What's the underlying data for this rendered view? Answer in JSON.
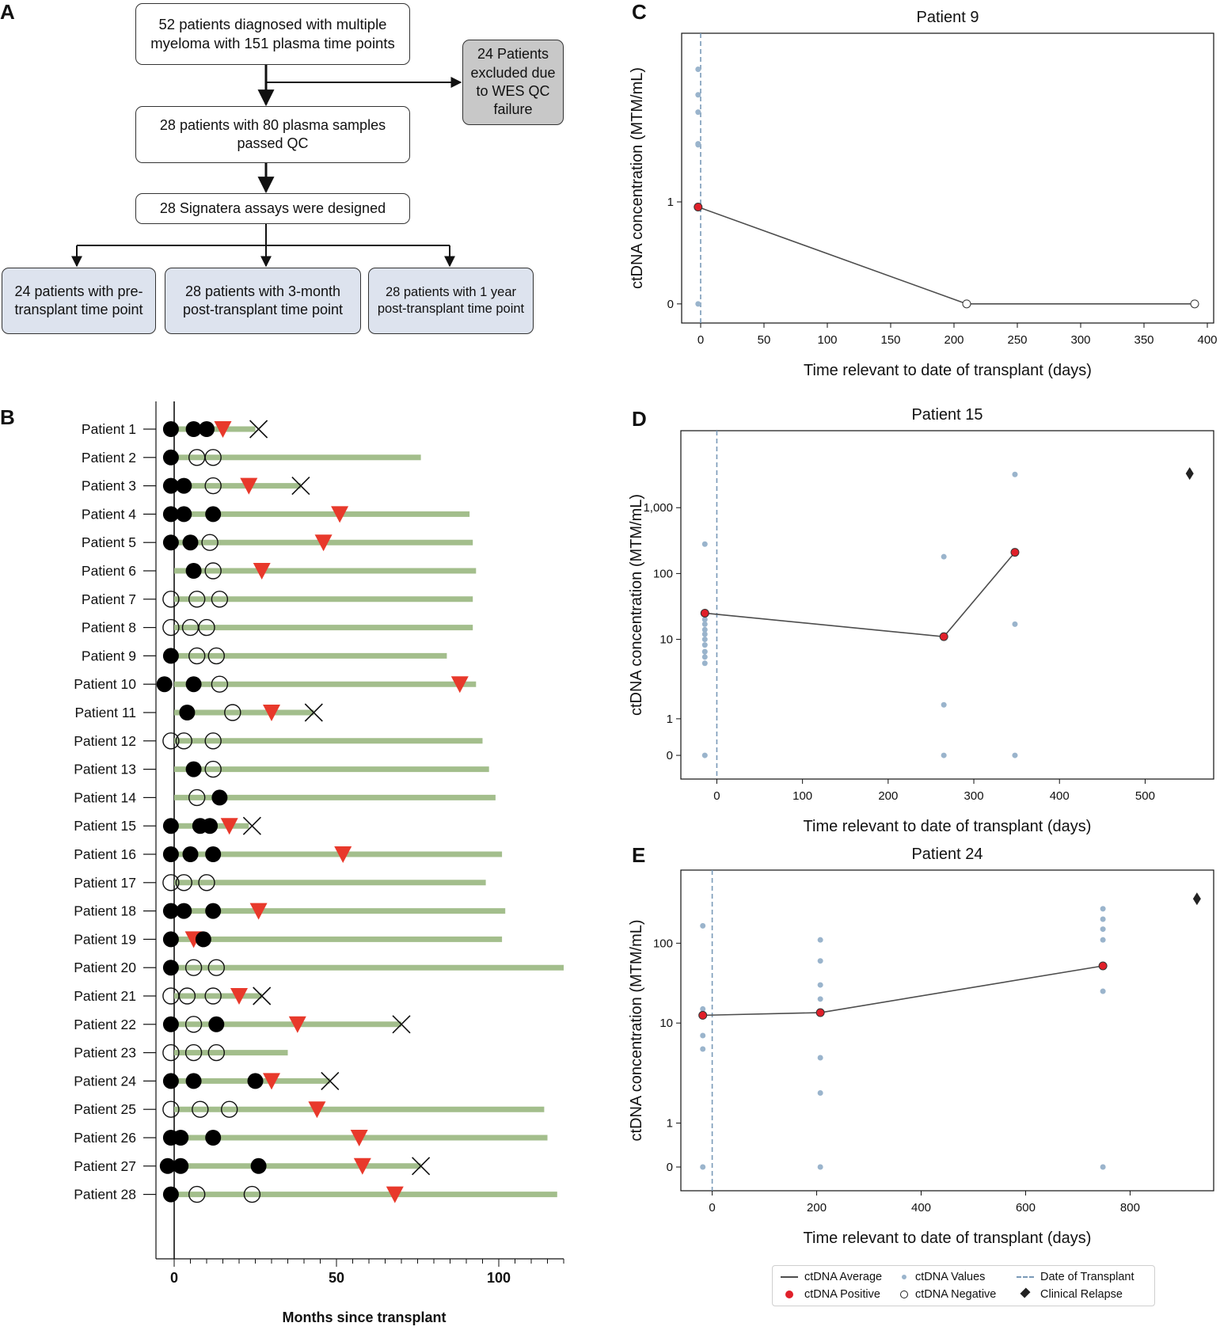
{
  "panel_letters": {
    "a": "A",
    "b": "B",
    "c": "C",
    "d": "D",
    "e": "E"
  },
  "flowchart": {
    "box1": "52 patients diagnosed with multiple myeloma with 151 plasma time points",
    "excluded": "24 Patients excluded due to WES QC failure",
    "box2": "28 patients with 80 plasma samples passed QC",
    "box3": "28 Signatera assays were designed",
    "out1": "24 patients with pre-transplant time point",
    "out2": "28 patients with 3-month post-transplant time point",
    "out3": "28 patients with 1 year post-transplant time point"
  },
  "legend": {
    "avg": "ctDNA Average",
    "positive": "ctDNA Positive",
    "values": "ctDNA Values",
    "negative": "ctDNA Negative",
    "transplant": "Date of Transplant",
    "relapse": "Clinical Relapse"
  },
  "colors": {
    "green_bar": "#a3be8c",
    "relapse_triangle": "#e8392b",
    "positive_dot": "#e0202a",
    "value_dot": "#9ab4cc",
    "line": "#4d4d4d",
    "transplant_line": "#7a9ab8"
  },
  "chart_data": [
    {
      "id": "B",
      "type": "swimmer",
      "xlabel": "Months since transplant",
      "xticks": [
        0,
        50,
        100
      ],
      "xlim": [
        -5,
        120
      ],
      "patients": [
        {
          "label": "Patient 1",
          "end": 25,
          "pos": [
            -1,
            6,
            10
          ],
          "neg": [],
          "relapse": [
            15
          ],
          "death": 26
        },
        {
          "label": "Patient 2",
          "end": 76,
          "pos": [
            -1
          ],
          "neg": [
            7,
            12
          ],
          "relapse": [],
          "death": null
        },
        {
          "label": "Patient 3",
          "end": 39,
          "pos": [
            -1,
            3
          ],
          "neg": [
            12
          ],
          "relapse": [
            23
          ],
          "death": 39
        },
        {
          "label": "Patient 4",
          "end": 91,
          "pos": [
            -1,
            3,
            12
          ],
          "neg": [],
          "relapse": [
            51
          ],
          "death": null
        },
        {
          "label": "Patient 5",
          "end": 92,
          "pos": [
            -1,
            5
          ],
          "neg": [
            11
          ],
          "relapse": [
            46
          ],
          "death": null
        },
        {
          "label": "Patient 6",
          "end": 93,
          "pos": [
            6
          ],
          "neg": [
            12
          ],
          "relapse": [
            27
          ],
          "death": null
        },
        {
          "label": "Patient 7",
          "end": 92,
          "pos": [],
          "neg": [
            -1,
            7,
            14
          ],
          "relapse": [],
          "death": null
        },
        {
          "label": "Patient 8",
          "end": 92,
          "pos": [],
          "neg": [
            -1,
            5,
            10
          ],
          "relapse": [],
          "death": null
        },
        {
          "label": "Patient 9",
          "end": 84,
          "pos": [
            -1
          ],
          "neg": [
            7,
            13
          ],
          "relapse": [],
          "death": null
        },
        {
          "label": "Patient 10",
          "end": 93,
          "pos": [
            -3,
            6
          ],
          "neg": [
            14
          ],
          "relapse": [
            88
          ],
          "death": null
        },
        {
          "label": "Patient 11",
          "end": 43,
          "pos": [
            4
          ],
          "neg": [
            18
          ],
          "relapse": [
            30
          ],
          "death": 43
        },
        {
          "label": "Patient 12",
          "end": 95,
          "pos": [],
          "neg": [
            -1,
            3,
            12
          ],
          "relapse": [],
          "death": null
        },
        {
          "label": "Patient 13",
          "end": 97,
          "pos": [
            6
          ],
          "neg": [
            12
          ],
          "relapse": [],
          "death": null
        },
        {
          "label": "Patient 14",
          "end": 99,
          "pos": [
            14
          ],
          "neg": [
            7
          ],
          "relapse": [],
          "death": null
        },
        {
          "label": "Patient 15",
          "end": 23,
          "pos": [
            -1,
            8,
            11
          ],
          "neg": [],
          "relapse": [
            17
          ],
          "death": 24
        },
        {
          "label": "Patient 16",
          "end": 101,
          "pos": [
            -1,
            5,
            12
          ],
          "neg": [],
          "relapse": [
            52
          ],
          "death": null
        },
        {
          "label": "Patient 17",
          "end": 96,
          "pos": [],
          "neg": [
            -1,
            3,
            10
          ],
          "relapse": [],
          "death": null
        },
        {
          "label": "Patient 18",
          "end": 102,
          "pos": [
            -1,
            3,
            12
          ],
          "neg": [],
          "relapse": [
            26
          ],
          "death": null
        },
        {
          "label": "Patient 19",
          "end": 101,
          "pos": [
            -1,
            9
          ],
          "neg": [],
          "relapse": [
            6
          ],
          "death": null
        },
        {
          "label": "Patient 20",
          "end": 120,
          "pos": [
            -1
          ],
          "neg": [
            6,
            13
          ],
          "relapse": [],
          "death": null
        },
        {
          "label": "Patient 21",
          "end": 27,
          "pos": [],
          "neg": [
            -1,
            4,
            12
          ],
          "relapse": [
            20
          ],
          "death": 27
        },
        {
          "label": "Patient 22",
          "end": 70,
          "pos": [
            -1,
            13
          ],
          "neg": [
            6
          ],
          "relapse": [
            38
          ],
          "death": 70
        },
        {
          "label": "Patient 23",
          "end": 35,
          "pos": [],
          "neg": [
            -1,
            6,
            13
          ],
          "relapse": [],
          "death": null
        },
        {
          "label": "Patient 24",
          "end": 48,
          "pos": [
            -1,
            6,
            25
          ],
          "neg": [],
          "relapse": [
            30
          ],
          "death": 48
        },
        {
          "label": "Patient 25",
          "end": 114,
          "pos": [],
          "neg": [
            -1,
            8,
            17
          ],
          "relapse": [
            44
          ],
          "death": null
        },
        {
          "label": "Patient 26",
          "end": 115,
          "pos": [
            -1,
            2,
            12
          ],
          "neg": [],
          "relapse": [
            57
          ],
          "death": null
        },
        {
          "label": "Patient 27",
          "end": 76,
          "pos": [
            -2,
            2,
            26
          ],
          "neg": [],
          "relapse": [
            58
          ],
          "death": 76
        },
        {
          "label": "Patient 28",
          "end": 118,
          "pos": [
            -1
          ],
          "neg": [
            7,
            24
          ],
          "relapse": [
            68
          ],
          "death": null
        }
      ]
    },
    {
      "id": "C",
      "type": "line",
      "title": "Patient 9",
      "xlabel": "Time relevant to date of transplant (days)",
      "ylabel": "ctDNA concentration (MTM/mL)",
      "xlim": [
        -15,
        405
      ],
      "xticks": [
        0,
        50,
        100,
        150,
        200,
        250,
        300,
        350,
        400
      ],
      "ytick_values": [
        0,
        1
      ],
      "ytick_labels": [
        "0",
        "1"
      ],
      "average": [
        {
          "x": -2,
          "y": 0.95,
          "positive": true
        },
        {
          "x": 210,
          "y": 0,
          "positive": false
        },
        {
          "x": 390,
          "y": 0,
          "positive": false
        }
      ],
      "values": [
        {
          "x": -2,
          "y": 0
        },
        {
          "x": -2,
          "y": 1.56
        },
        {
          "x": -2,
          "y": 1.57
        },
        {
          "x": -2,
          "y": 1.88
        },
        {
          "x": -2,
          "y": 2.05
        },
        {
          "x": -2,
          "y": 2.3
        }
      ],
      "transplant_x": 0,
      "relapse": []
    },
    {
      "id": "D",
      "type": "line",
      "title": "Patient 15",
      "xlabel": "Time relevant to date of transplant (days)",
      "ylabel": "ctDNA concentration (MTM/mL)",
      "xlim": [
        -42,
        580
      ],
      "xticks": [
        0,
        100,
        200,
        300,
        400,
        500
      ],
      "ytick_values": [
        0,
        1,
        10,
        100,
        1000
      ],
      "ytick_labels": [
        "0",
        "1",
        "10",
        "100",
        "1,000"
      ],
      "average": [
        {
          "x": -14,
          "y": 25,
          "positive": true
        },
        {
          "x": 265,
          "y": 11,
          "positive": true
        },
        {
          "x": 348,
          "y": 210,
          "positive": true
        }
      ],
      "values": [
        {
          "x": -14,
          "y": 0
        },
        {
          "x": -14,
          "y": 5
        },
        {
          "x": -14,
          "y": 6
        },
        {
          "x": -14,
          "y": 7
        },
        {
          "x": -14,
          "y": 8.5
        },
        {
          "x": -14,
          "y": 10
        },
        {
          "x": -14,
          "y": 12
        },
        {
          "x": -14,
          "y": 14
        },
        {
          "x": -14,
          "y": 17
        },
        {
          "x": -14,
          "y": 20
        },
        {
          "x": -14,
          "y": 280
        },
        {
          "x": 265,
          "y": 0
        },
        {
          "x": 265,
          "y": 1.5
        },
        {
          "x": 265,
          "y": 180
        },
        {
          "x": 348,
          "y": 0
        },
        {
          "x": 348,
          "y": 17
        },
        {
          "x": 348,
          "y": 3200
        }
      ],
      "transplant_x": 0,
      "relapse": [
        {
          "x": 552,
          "y": 3300
        }
      ]
    },
    {
      "id": "E",
      "type": "line",
      "title": "Patient 24",
      "xlabel": "Time relevant to date of transplant (days)",
      "ylabel": "ctDNA concentration (MTM/mL)",
      "xlim": [
        -60,
        960
      ],
      "xticks": [
        0,
        200,
        400,
        600,
        800
      ],
      "ytick_values": [
        0,
        1,
        10,
        100
      ],
      "ytick_labels": [
        "0",
        "1",
        "10",
        "100"
      ],
      "average": [
        {
          "x": -18,
          "y": 12.5,
          "positive": true
        },
        {
          "x": 207,
          "y": 13.5,
          "positive": true
        },
        {
          "x": 748,
          "y": 52,
          "positive": true
        }
      ],
      "values": [
        {
          "x": -18,
          "y": 0
        },
        {
          "x": -18,
          "y": 5.5
        },
        {
          "x": -18,
          "y": 7.5
        },
        {
          "x": -18,
          "y": 13
        },
        {
          "x": -18,
          "y": 15
        },
        {
          "x": -18,
          "y": 165
        },
        {
          "x": 207,
          "y": 0
        },
        {
          "x": 207,
          "y": 2
        },
        {
          "x": 207,
          "y": 4.5
        },
        {
          "x": 207,
          "y": 20
        },
        {
          "x": 207,
          "y": 30
        },
        {
          "x": 207,
          "y": 60
        },
        {
          "x": 207,
          "y": 110
        },
        {
          "x": 748,
          "y": 0
        },
        {
          "x": 748,
          "y": 25
        },
        {
          "x": 748,
          "y": 110
        },
        {
          "x": 748,
          "y": 150
        },
        {
          "x": 748,
          "y": 200
        },
        {
          "x": 748,
          "y": 270
        }
      ],
      "transplant_x": 0,
      "relapse": [
        {
          "x": 928,
          "y": 360
        }
      ]
    }
  ]
}
